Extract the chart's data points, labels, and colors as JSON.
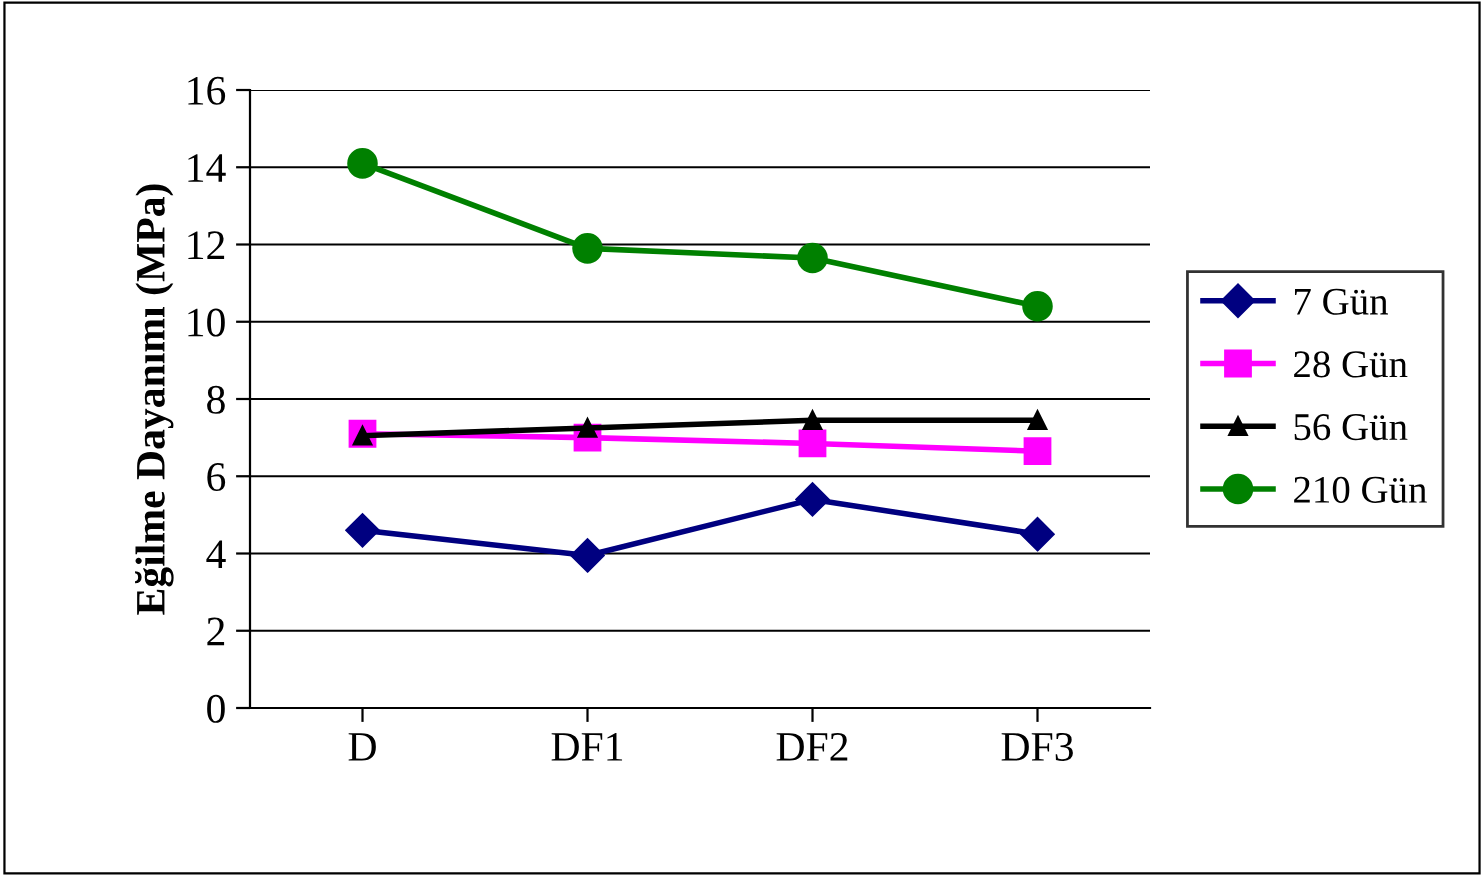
{
  "chart_data": {
    "type": "line",
    "ylabel": "Eğilme Dayanımı (MPa)",
    "categories": [
      "D",
      "DF1",
      "DF2",
      "DF3"
    ],
    "series": [
      {
        "name": "7 Gün",
        "color": "#000080",
        "marker": "diamond",
        "values": [
          4.6,
          3.95,
          5.4,
          4.5
        ]
      },
      {
        "name": "28 Gün",
        "color": "#ff00ff",
        "marker": "square",
        "values": [
          7.1,
          7.0,
          6.85,
          6.65
        ]
      },
      {
        "name": "56 Gün",
        "color": "#000000",
        "marker": "triangle",
        "values": [
          7.05,
          7.25,
          7.45,
          7.45
        ]
      },
      {
        "name": "210 Gün",
        "color": "#008000",
        "marker": "circle",
        "values": [
          14.1,
          11.9,
          11.65,
          10.4
        ]
      }
    ],
    "ylim": [
      0,
      16
    ],
    "yticks": [
      0,
      2,
      4,
      6,
      8,
      10,
      12,
      14,
      16
    ],
    "grid": "y",
    "legend": "right"
  }
}
